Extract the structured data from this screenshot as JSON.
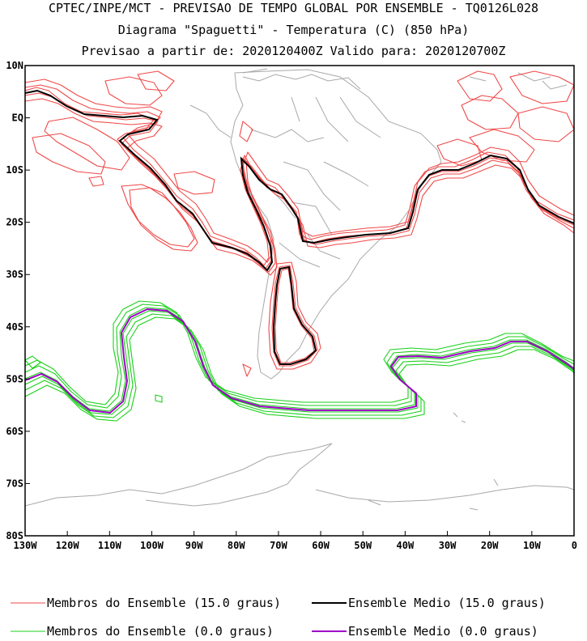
{
  "titles": {
    "line1": "CPTEC/INPE/MCT - PREVISAO DE TEMPO GLOBAL POR ENSEMBLE - TQ0126L028",
    "line2": "Diagrama \"Spaguetti\" - Temperatura (C) (850 hPa)",
    "line3": "Previsao a partir de: 2020120400Z  Valido para: 2020120700Z"
  },
  "map": {
    "lon_range": [
      -130,
      0
    ],
    "lat_range": [
      -80,
      10
    ],
    "lat_ticks": [
      {
        "value": 10,
        "label": "10N"
      },
      {
        "value": 0,
        "label": "EQ"
      },
      {
        "value": -10,
        "label": "10S"
      },
      {
        "value": -20,
        "label": "20S"
      },
      {
        "value": -30,
        "label": "30S"
      },
      {
        "value": -40,
        "label": "40S"
      },
      {
        "value": -50,
        "label": "50S"
      },
      {
        "value": -60,
        "label": "60S"
      },
      {
        "value": -70,
        "label": "70S"
      },
      {
        "value": -80,
        "label": "80S"
      }
    ],
    "lon_ticks": [
      {
        "value": -130,
        "label": "130W"
      },
      {
        "value": -120,
        "label": "120W"
      },
      {
        "value": -110,
        "label": "110W"
      },
      {
        "value": -100,
        "label": "100W"
      },
      {
        "value": -90,
        "label": "90W"
      },
      {
        "value": -80,
        "label": "80W"
      },
      {
        "value": -70,
        "label": "70W"
      },
      {
        "value": -60,
        "label": "60W"
      },
      {
        "value": -50,
        "label": "50W"
      },
      {
        "value": -40,
        "label": "40W"
      },
      {
        "value": -30,
        "label": "30W"
      },
      {
        "value": -20,
        "label": "20W"
      },
      {
        "value": -10,
        "label": "10W"
      },
      {
        "value": 0,
        "label": "0"
      }
    ],
    "colors": {
      "coast": "#a8a8a8",
      "members15": "#f04848",
      "mean15": "#000000",
      "members0": "#18d018",
      "mean0": "#a000c8"
    }
  },
  "legend": [
    {
      "label": "Membros do Ensemble (15.0 graus)",
      "color": "#f04848"
    },
    {
      "label": "Ensemble Medio (15.0 graus)",
      "color": "#000000"
    },
    {
      "label": "Membros do Ensemble (0.0 graus)",
      "color": "#18d018"
    },
    {
      "label": "Ensemble Medio (0.0 graus)",
      "color": "#a000c8"
    }
  ]
}
